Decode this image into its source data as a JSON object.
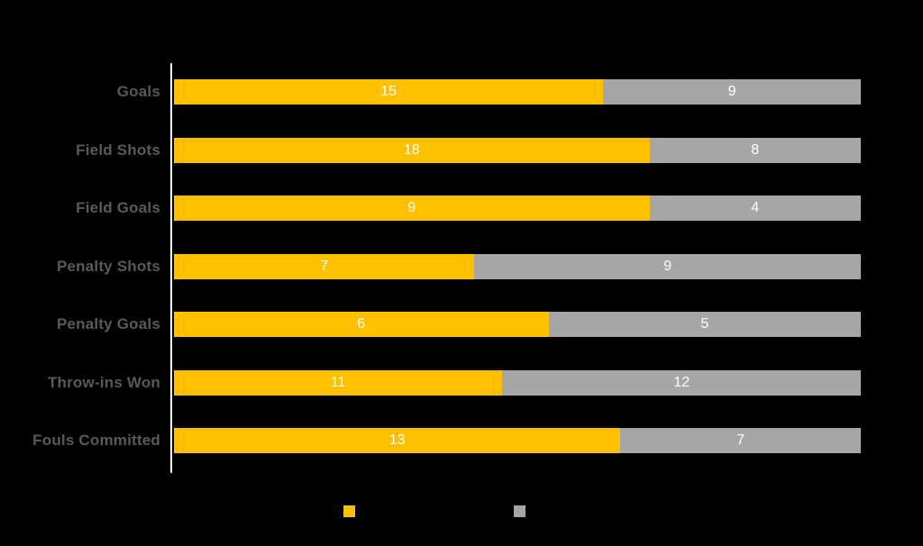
{
  "chart_data": {
    "type": "bar",
    "orientation": "horizontal",
    "stacked": true,
    "normalized_to_full_width": true,
    "title": "",
    "xlabel": "",
    "ylabel": "",
    "grid": false,
    "value_labels_position": "inside-center",
    "categories": [
      "Goals",
      "Field Shots",
      "Field Goals",
      "Penalty Shots",
      "Penalty Goals",
      "Throw-ins Won",
      "Fouls Committed"
    ],
    "series": [
      {
        "name": "yellow-series",
        "color": "#FFC000",
        "values": [
          15,
          18,
          9,
          7,
          6,
          11,
          13
        ]
      },
      {
        "name": "gray-series",
        "color": "#A6A6A6",
        "values": [
          9,
          8,
          4,
          9,
          5,
          12,
          7
        ]
      }
    ],
    "legend": {
      "position": "bottom",
      "entries": [
        {
          "color": "#FFC000",
          "label": ""
        },
        {
          "color": "#A6A6A6",
          "label": ""
        }
      ]
    }
  },
  "colors": {
    "background": "#000000",
    "axis_line": "#FFFFFF",
    "category_label": "#595959",
    "value_label": "#FFFFFF",
    "bar_yellow": "#FFC000",
    "bar_gray": "#A6A6A6"
  }
}
